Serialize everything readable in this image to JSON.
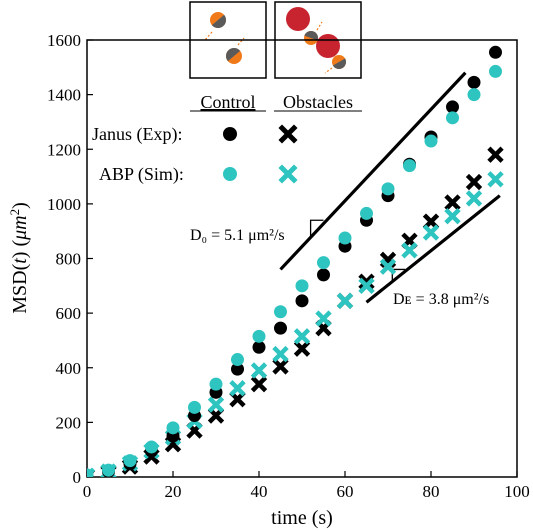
{
  "chart_data": {
    "type": "scatter",
    "xlabel": "time (s)",
    "ylabel": "MSD(t) (μm²)",
    "ylabel_parts": {
      "a": "MSD(",
      "b": "t",
      "c": ") (",
      "d": "μm",
      "e": "2",
      "f": ")"
    },
    "xlim": [
      0,
      100
    ],
    "ylim": [
      0,
      1600
    ],
    "xticks": [
      "0",
      "20",
      "40",
      "60",
      "80",
      "100"
    ],
    "yticks": [
      "0",
      "200",
      "400",
      "600",
      "800",
      "1000",
      "1200",
      "1400",
      "1600"
    ],
    "legend": {
      "col_control": "Control",
      "col_obstacles": "Obstacles",
      "row_janus": "Janus (Exp):",
      "row_abp": "ABP (Sim):"
    },
    "colors": {
      "experiment": "#000000",
      "simulation": "#2ec4c0",
      "janus_orange": "#f07a1a",
      "janus_gray": "#5a5a5a",
      "obstacle_red": "#c8242f"
    },
    "series": [
      {
        "group": "Janus (Exp)",
        "condition": "Control",
        "marker": "circle",
        "color": "#000000",
        "x": [
          0,
          5,
          10,
          15,
          20,
          25,
          30,
          35,
          40,
          45,
          50,
          55,
          60,
          65,
          70,
          75,
          80,
          85,
          90,
          95
        ],
        "y": [
          5,
          20,
          48,
          95,
          150,
          225,
          310,
          395,
          475,
          545,
          645,
          740,
          845,
          940,
          1030,
          1145,
          1245,
          1355,
          1445,
          1555
        ]
      },
      {
        "group": "ABP (Sim)",
        "condition": "Control",
        "marker": "circle",
        "color": "#2ec4c0",
        "x": [
          0,
          5,
          10,
          15,
          20,
          25,
          30,
          35,
          40,
          45,
          50,
          55,
          60,
          65,
          70,
          75,
          80,
          85,
          90,
          95
        ],
        "y": [
          8,
          25,
          60,
          110,
          180,
          255,
          340,
          430,
          515,
          605,
          700,
          785,
          875,
          965,
          1055,
          1140,
          1230,
          1315,
          1400,
          1485
        ]
      },
      {
        "group": "Janus (Exp)",
        "condition": "Obstacles",
        "marker": "x",
        "color": "#000000",
        "x": [
          0,
          5,
          10,
          15,
          20,
          25,
          30,
          35,
          40,
          45,
          50,
          55,
          60,
          65,
          70,
          75,
          80,
          85,
          90,
          95
        ],
        "y": [
          3,
          15,
          38,
          75,
          120,
          170,
          225,
          285,
          340,
          405,
          470,
          545,
          645,
          715,
          795,
          865,
          935,
          1005,
          1080,
          1180
        ]
      },
      {
        "group": "ABP (Sim)",
        "condition": "Obstacles",
        "marker": "x",
        "color": "#2ec4c0",
        "x": [
          0,
          5,
          10,
          15,
          20,
          25,
          30,
          35,
          40,
          45,
          50,
          55,
          60,
          65,
          70,
          75,
          80,
          85,
          90,
          95
        ],
        "y": [
          5,
          20,
          50,
          95,
          145,
          205,
          265,
          325,
          390,
          450,
          515,
          580,
          645,
          700,
          770,
          830,
          895,
          955,
          1020,
          1090
        ]
      }
    ],
    "guides": [
      {
        "label": "D₀ = 5.1 μm²/s",
        "x": [
          45,
          88
        ],
        "y": [
          760,
          1480
        ],
        "triangle": {
          "x": [
            52,
            55
          ],
          "y": [
            880,
            940
          ]
        }
      },
      {
        "label": "Dᴇ = 3.8 μm²/s",
        "x": [
          65,
          96
        ],
        "y": [
          640,
          1030
        ],
        "triangle": {
          "x": [
            71,
            74
          ],
          "y": [
            720,
            760
          ]
        }
      }
    ]
  }
}
